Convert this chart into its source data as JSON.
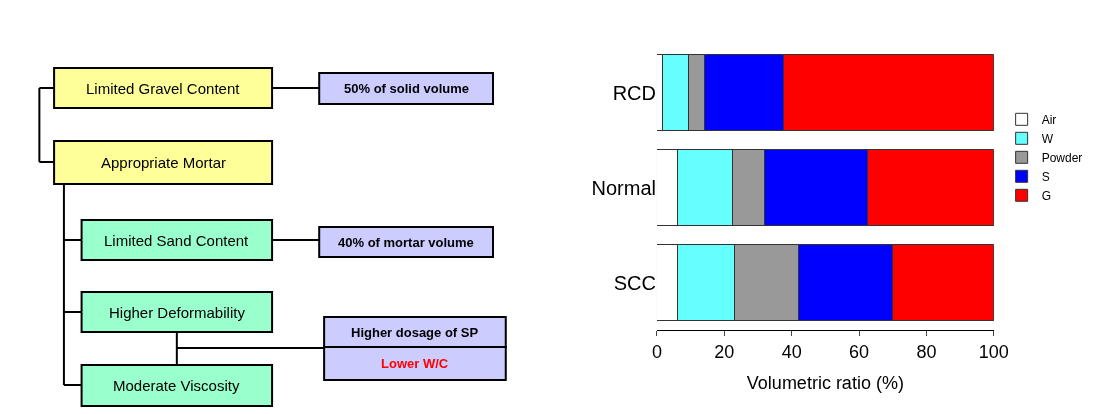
{
  "chart_data": [
    {
      "type": "other",
      "annotations": [
        "Limited Gravel Content",
        "50% of solid volume",
        "Appropriate Mortar",
        "Limited Sand Content",
        "40% of mortar volume",
        "Higher Deformability",
        "Higher dosage of SP",
        "Lower W/C",
        "Moderate Viscosity"
      ]
    },
    {
      "type": "bar",
      "orientation": "horizontal",
      "stacked": true,
      "categories": [
        "RCD",
        "Normal",
        "SCC"
      ],
      "xlim": [
        0,
        100
      ],
      "xticks": [
        0,
        20,
        40,
        60,
        80,
        100
      ],
      "xlabel": "Volumetric ratio (%)",
      "legend": "right",
      "series": [
        {
          "name": "Air",
          "color": "#ffffff",
          "values": [
            1.5,
            6,
            6
          ]
        },
        {
          "name": "W",
          "color": "#66ffff",
          "values": [
            8,
            16.5,
            17
          ]
        },
        {
          "name": "Powder",
          "color": "#999999",
          "values": [
            4.5,
            9.5,
            19
          ]
        },
        {
          "name": "S",
          "color": "#0000ff",
          "values": [
            23.5,
            30.5,
            28
          ]
        },
        {
          "name": "G",
          "color": "#ff0000",
          "values": [
            62.5,
            37.5,
            30
          ]
        }
      ]
    }
  ]
}
